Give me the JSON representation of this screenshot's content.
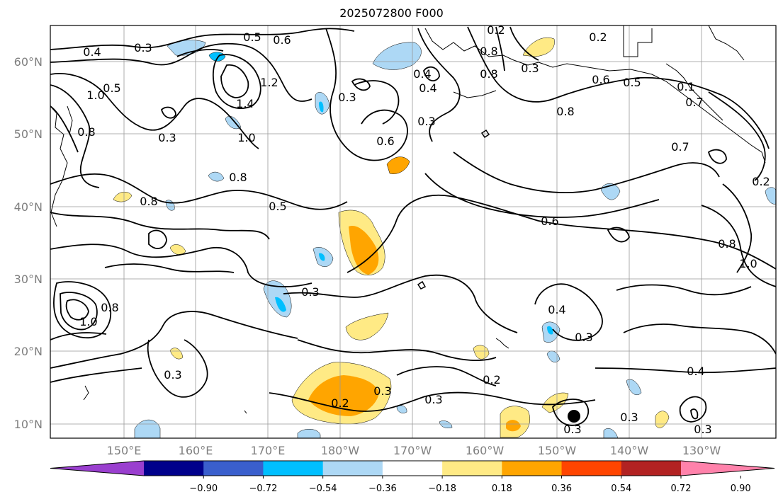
{
  "title": "2025072800 F000",
  "lat_labels": [
    "60°N",
    "50°N",
    "40°N",
    "30°N",
    "20°N",
    "10°N"
  ],
  "lon_labels": [
    "150°E",
    "160°E",
    "170°E",
    "180°W",
    "170°W",
    "160°W",
    "150°W",
    "140°W",
    "130°W"
  ],
  "colorbar": {
    "ticks": [
      "−0.90",
      "−0.72",
      "−0.54",
      "−0.36",
      "−0.18",
      "0.18",
      "0.36",
      "0.54",
      "0.72",
      "0.90"
    ],
    "colors": [
      "#9a3fcf",
      "#00008b",
      "#3a5fcd",
      "#00bfff",
      "#add8f5",
      "#ffffff",
      "#ffea85",
      "#ffa500",
      "#ff4500",
      "#b22222",
      "#ff82ab"
    ]
  },
  "contour_labels": [
    "0.4",
    "0.3",
    "0.5",
    "0.6",
    "0.2",
    "0.8",
    "0.4",
    "1.2",
    "1.4",
    "1.0",
    "0.3",
    "0.4",
    "0.3",
    "0.6",
    "0.8",
    "0.5",
    "0.6",
    "0.5",
    "0.7",
    "0.6",
    "0.8",
    "0.8",
    "1.0",
    "0.3",
    "0.4",
    "0.3",
    "0.3",
    "0.2",
    "0.2",
    "0.3",
    "0.3",
    "0.3",
    "0.4",
    "0.2",
    "1.0",
    "0.8",
    "0.8",
    "1.0",
    "0.8",
    "0.5",
    "0.3",
    "0.3",
    "0.3",
    "0.3",
    "0.8",
    "0.2",
    "0.1",
    "0.7"
  ],
  "legend_colors": {
    "contour": "#000000",
    "grid": "#999999",
    "coast": "#000000"
  }
}
